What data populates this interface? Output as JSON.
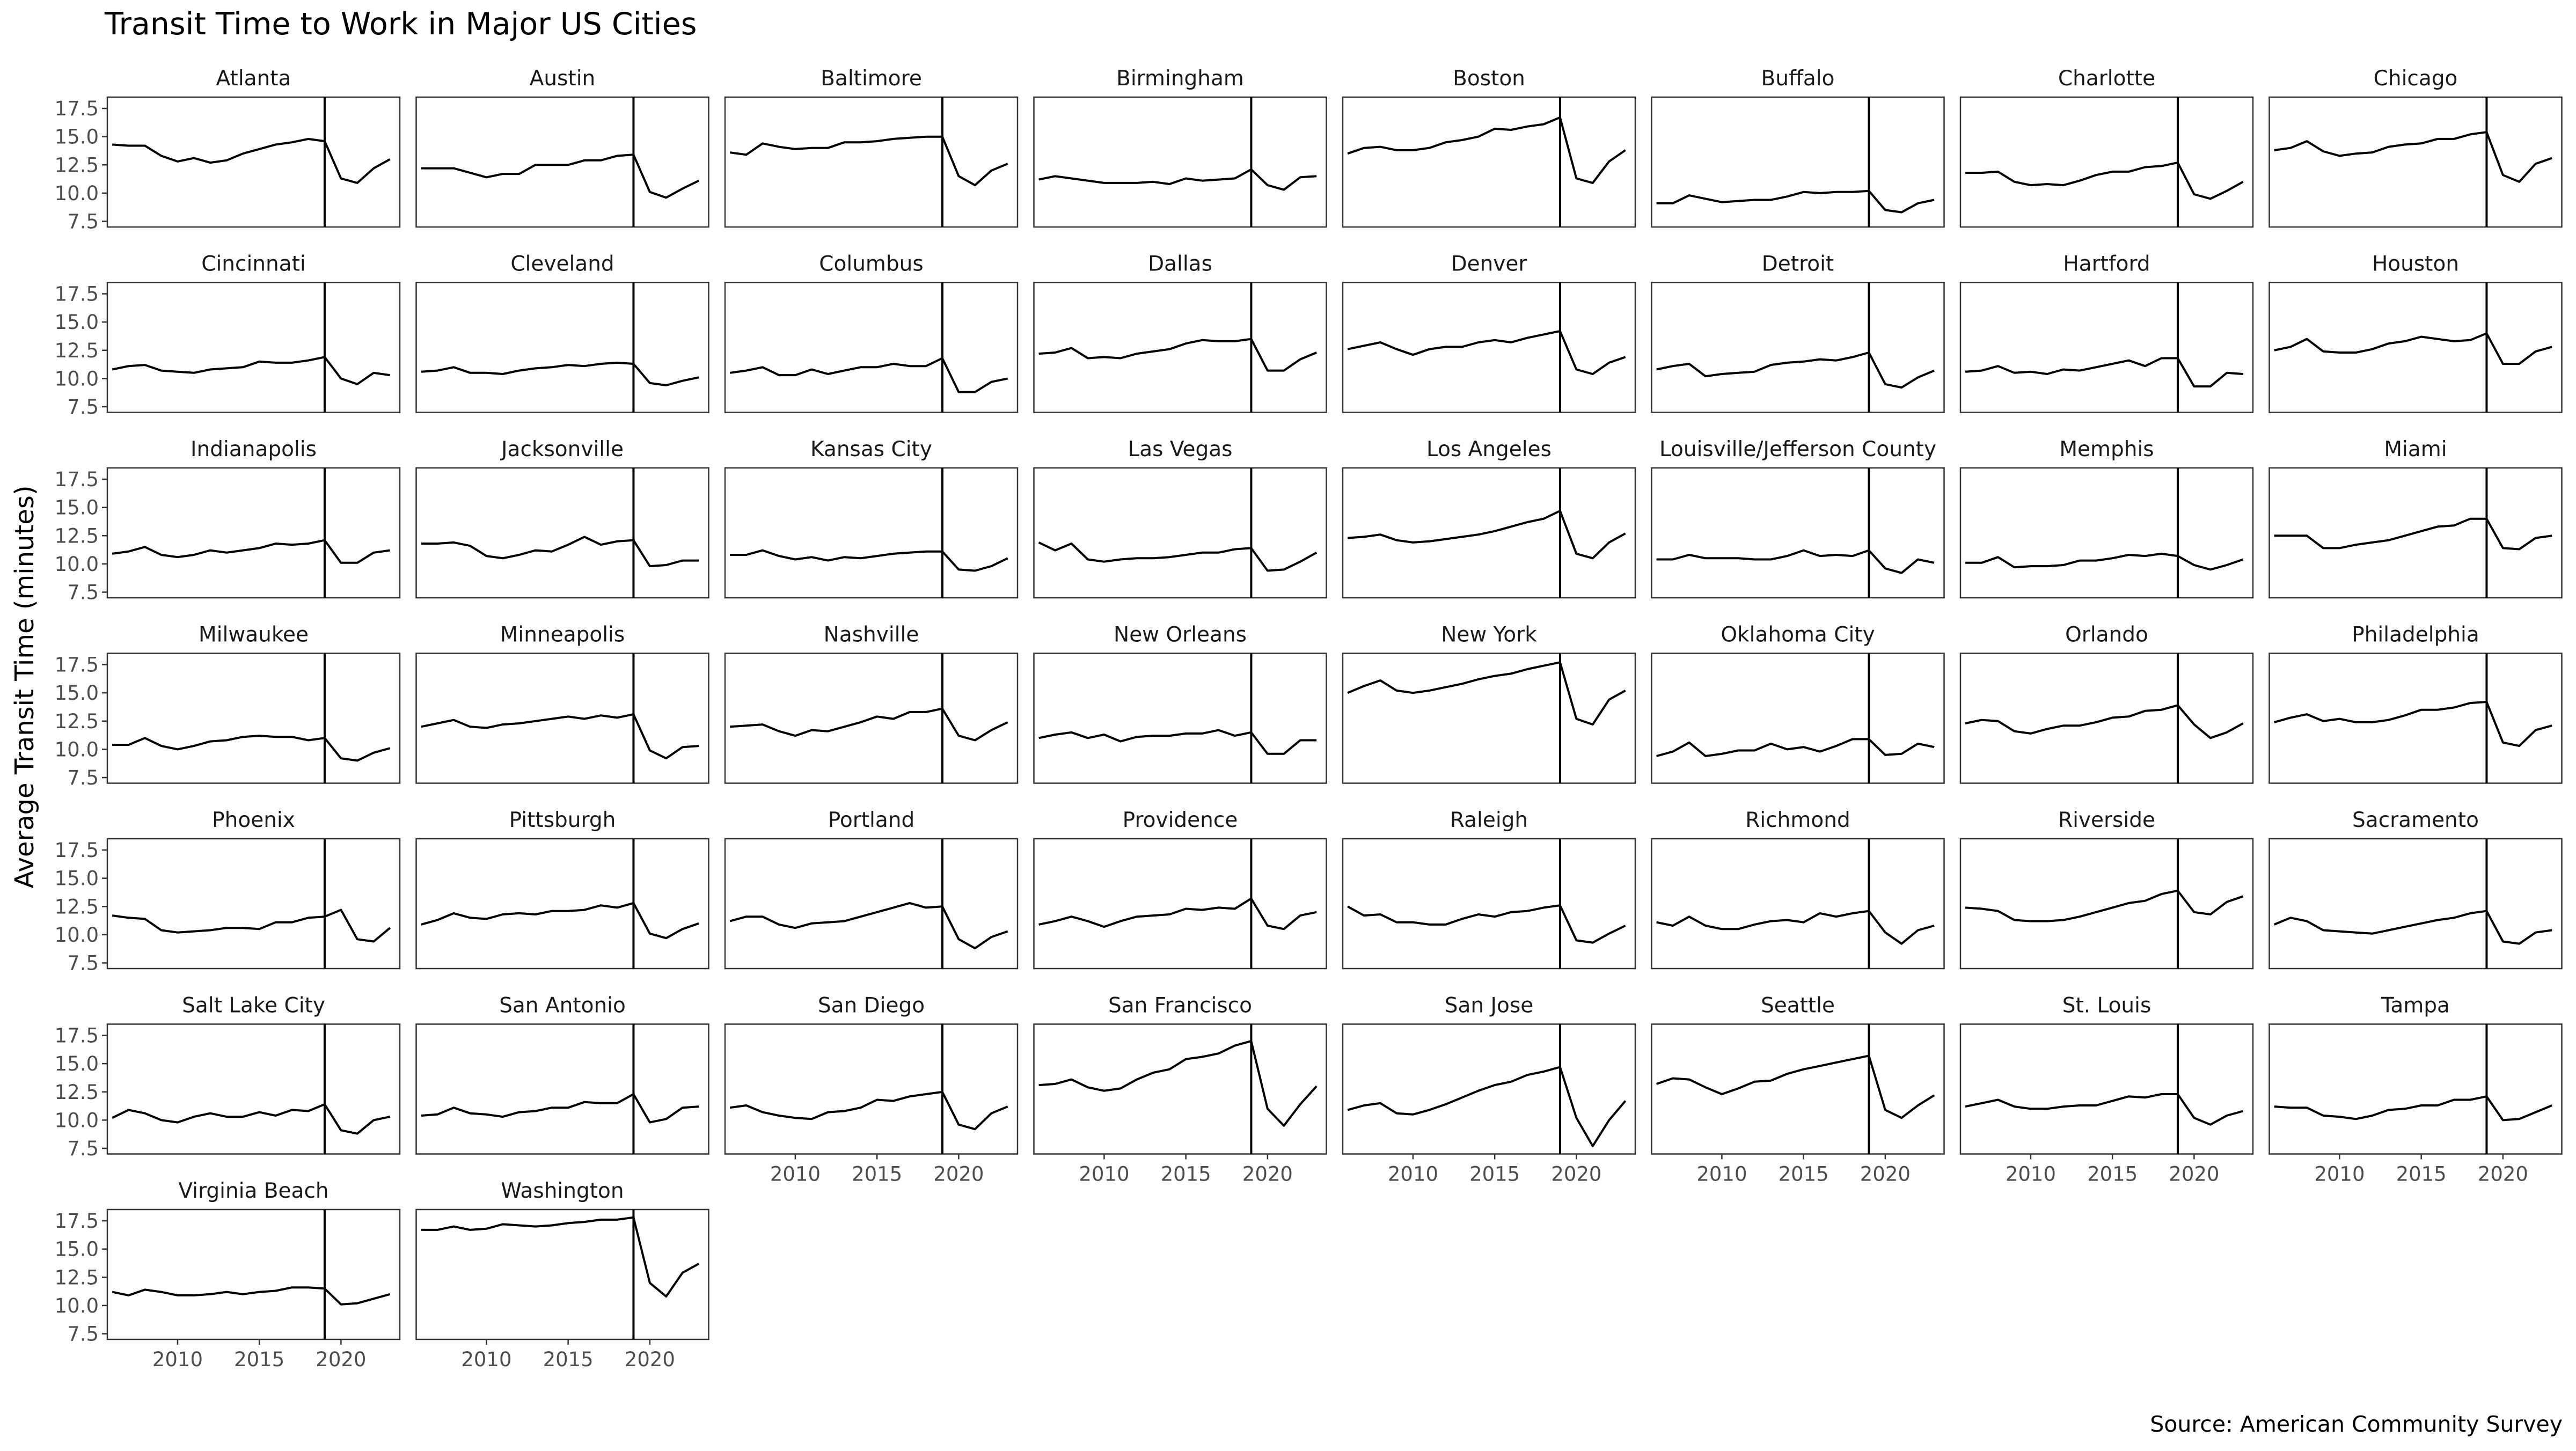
{
  "page": {
    "title": "Transit Time to Work in Major US Cities",
    "caption": "Source: American Community Survey"
  },
  "chart_data": {
    "type": "line",
    "title": "Transit Time to Work in Major US Cities",
    "xlabel": "",
    "ylabel": "Average Transit Time (minutes)",
    "caption": "Source: American Community Survey",
    "x": [
      2006,
      2007,
      2008,
      2009,
      2010,
      2011,
      2012,
      2013,
      2014,
      2015,
      2016,
      2017,
      2018,
      2019,
      2020,
      2021,
      2022,
      2023
    ],
    "xlim": [
      2005.7,
      2023.6
    ],
    "ylim": [
      7.0,
      18.5
    ],
    "x_ticks": [
      2010,
      2015,
      2020
    ],
    "x_tick_labels": [
      "2010",
      "2015",
      "2020"
    ],
    "y_ticks": [
      7.5,
      10.0,
      12.5,
      15.0,
      17.5
    ],
    "y_tick_labels": [
      "7.5",
      "10.0",
      "12.5",
      "15.0",
      "17.5"
    ],
    "reference_line_x": 2019,
    "grid": false,
    "legend": "none",
    "facet_columns": 8,
    "series": [
      {
        "name": "Atlanta",
        "values": [
          14.3,
          14.2,
          14.2,
          13.3,
          12.8,
          13.1,
          12.7,
          12.9,
          13.5,
          13.9,
          14.3,
          14.5,
          14.8,
          14.6,
          11.3,
          10.9,
          12.2,
          13.0
        ]
      },
      {
        "name": "Austin",
        "values": [
          12.2,
          12.2,
          12.2,
          11.8,
          11.4,
          11.7,
          11.7,
          12.5,
          12.5,
          12.5,
          12.9,
          12.9,
          13.3,
          13.4,
          10.1,
          9.6,
          10.4,
          11.1
        ]
      },
      {
        "name": "Baltimore",
        "values": [
          13.6,
          13.4,
          14.4,
          14.1,
          13.9,
          14.0,
          14.0,
          14.5,
          14.5,
          14.6,
          14.8,
          14.9,
          15.0,
          15.0,
          11.5,
          10.7,
          12.0,
          12.6
        ]
      },
      {
        "name": "Birmingham",
        "values": [
          11.2,
          11.5,
          11.3,
          11.1,
          10.9,
          10.9,
          10.9,
          11.0,
          10.8,
          11.3,
          11.1,
          11.2,
          11.3,
          12.1,
          10.7,
          10.3,
          11.4,
          11.5
        ]
      },
      {
        "name": "Boston",
        "values": [
          13.5,
          14.0,
          14.1,
          13.8,
          13.8,
          14.0,
          14.5,
          14.7,
          15.0,
          15.7,
          15.6,
          15.9,
          16.1,
          16.7,
          11.3,
          10.9,
          12.8,
          13.8
        ]
      },
      {
        "name": "Buffalo",
        "values": [
          9.1,
          9.1,
          9.8,
          9.5,
          9.2,
          9.3,
          9.4,
          9.4,
          9.7,
          10.1,
          10.0,
          10.1,
          10.1,
          10.2,
          8.5,
          8.3,
          9.1,
          9.4
        ]
      },
      {
        "name": "Charlotte",
        "values": [
          11.8,
          11.8,
          11.9,
          11.0,
          10.7,
          10.8,
          10.7,
          11.1,
          11.6,
          11.9,
          11.9,
          12.3,
          12.4,
          12.7,
          9.9,
          9.5,
          10.2,
          11.0
        ]
      },
      {
        "name": "Chicago",
        "values": [
          13.8,
          14.0,
          14.6,
          13.7,
          13.3,
          13.5,
          13.6,
          14.1,
          14.3,
          14.4,
          14.8,
          14.8,
          15.2,
          15.4,
          11.6,
          11.0,
          12.6,
          13.1
        ]
      },
      {
        "name": "Cincinnati",
        "values": [
          10.8,
          11.1,
          11.2,
          10.7,
          10.6,
          10.5,
          10.8,
          10.9,
          11.0,
          11.5,
          11.4,
          11.4,
          11.6,
          11.9,
          10.0,
          9.5,
          10.5,
          10.3
        ]
      },
      {
        "name": "Cleveland",
        "values": [
          10.6,
          10.7,
          11.0,
          10.5,
          10.5,
          10.4,
          10.7,
          10.9,
          11.0,
          11.2,
          11.1,
          11.3,
          11.4,
          11.3,
          9.6,
          9.4,
          9.8,
          10.1
        ]
      },
      {
        "name": "Columbus",
        "values": [
          10.5,
          10.7,
          11.0,
          10.3,
          10.3,
          10.8,
          10.4,
          10.7,
          11.0,
          11.0,
          11.3,
          11.1,
          11.1,
          11.8,
          8.8,
          8.8,
          9.7,
          10.0
        ]
      },
      {
        "name": "Dallas",
        "values": [
          12.2,
          12.3,
          12.7,
          11.8,
          11.9,
          11.8,
          12.2,
          12.4,
          12.6,
          13.1,
          13.4,
          13.3,
          13.3,
          13.5,
          10.7,
          10.7,
          11.7,
          12.3
        ]
      },
      {
        "name": "Denver",
        "values": [
          12.6,
          12.9,
          13.2,
          12.6,
          12.1,
          12.6,
          12.8,
          12.8,
          13.2,
          13.4,
          13.2,
          13.6,
          13.9,
          14.2,
          10.8,
          10.4,
          11.4,
          11.9
        ]
      },
      {
        "name": "Detroit",
        "values": [
          10.8,
          11.1,
          11.3,
          10.2,
          10.4,
          10.5,
          10.6,
          11.2,
          11.4,
          11.5,
          11.7,
          11.6,
          11.9,
          12.3,
          9.5,
          9.2,
          10.1,
          10.7
        ]
      },
      {
        "name": "Hartford",
        "values": [
          10.6,
          10.7,
          11.1,
          10.5,
          10.6,
          10.4,
          10.8,
          10.7,
          11.0,
          11.3,
          11.6,
          11.1,
          11.8,
          11.8,
          9.3,
          9.3,
          10.5,
          10.4
        ]
      },
      {
        "name": "Houston",
        "values": [
          12.5,
          12.8,
          13.5,
          12.4,
          12.3,
          12.3,
          12.6,
          13.1,
          13.3,
          13.7,
          13.5,
          13.3,
          13.4,
          14.0,
          11.3,
          11.3,
          12.4,
          12.8
        ]
      },
      {
        "name": "Indianapolis",
        "values": [
          10.9,
          11.1,
          11.5,
          10.8,
          10.6,
          10.8,
          11.2,
          11.0,
          11.2,
          11.4,
          11.8,
          11.7,
          11.8,
          12.1,
          10.1,
          10.1,
          11.0,
          11.2
        ]
      },
      {
        "name": "Jacksonville",
        "values": [
          11.8,
          11.8,
          11.9,
          11.6,
          10.7,
          10.5,
          10.8,
          11.2,
          11.1,
          11.7,
          12.4,
          11.7,
          12.0,
          12.1,
          9.8,
          9.9,
          10.3,
          10.3
        ]
      },
      {
        "name": "Kansas City",
        "values": [
          10.8,
          10.8,
          11.2,
          10.7,
          10.4,
          10.6,
          10.3,
          10.6,
          10.5,
          10.7,
          10.9,
          11.0,
          11.1,
          11.1,
          9.5,
          9.4,
          9.8,
          10.5
        ]
      },
      {
        "name": "Las Vegas",
        "values": [
          11.9,
          11.2,
          11.8,
          10.4,
          10.2,
          10.4,
          10.5,
          10.5,
          10.6,
          10.8,
          11.0,
          11.0,
          11.3,
          11.4,
          9.4,
          9.5,
          10.2,
          11.0
        ]
      },
      {
        "name": "Los Angeles",
        "values": [
          12.3,
          12.4,
          12.6,
          12.1,
          11.9,
          12.0,
          12.2,
          12.4,
          12.6,
          12.9,
          13.3,
          13.7,
          14.0,
          14.7,
          10.9,
          10.5,
          11.9,
          12.7
        ]
      },
      {
        "name": "Louisville/Jefferson County",
        "values": [
          10.4,
          10.4,
          10.8,
          10.5,
          10.5,
          10.5,
          10.4,
          10.4,
          10.7,
          11.2,
          10.7,
          10.8,
          10.7,
          11.2,
          9.6,
          9.2,
          10.4,
          10.1
        ]
      },
      {
        "name": "Memphis",
        "values": [
          10.1,
          10.1,
          10.6,
          9.7,
          9.8,
          9.8,
          9.9,
          10.3,
          10.3,
          10.5,
          10.8,
          10.7,
          10.9,
          10.7,
          9.9,
          9.5,
          9.9,
          10.4
        ]
      },
      {
        "name": "Miami",
        "values": [
          12.5,
          12.5,
          12.5,
          11.4,
          11.4,
          11.7,
          11.9,
          12.1,
          12.5,
          12.9,
          13.3,
          13.4,
          14.0,
          14.0,
          11.4,
          11.3,
          12.3,
          12.5
        ]
      },
      {
        "name": "Milwaukee",
        "values": [
          10.4,
          10.4,
          11.0,
          10.3,
          10.0,
          10.3,
          10.7,
          10.8,
          11.1,
          11.2,
          11.1,
          11.1,
          10.8,
          11.0,
          9.2,
          9.0,
          9.7,
          10.1
        ]
      },
      {
        "name": "Minneapolis",
        "values": [
          12.0,
          12.3,
          12.6,
          12.0,
          11.9,
          12.2,
          12.3,
          12.5,
          12.7,
          12.9,
          12.7,
          13.0,
          12.8,
          13.1,
          9.9,
          9.2,
          10.2,
          10.3
        ]
      },
      {
        "name": "Nashville",
        "values": [
          12.0,
          12.1,
          12.2,
          11.6,
          11.2,
          11.7,
          11.6,
          12.0,
          12.4,
          12.9,
          12.7,
          13.3,
          13.3,
          13.6,
          11.2,
          10.8,
          11.7,
          12.4
        ]
      },
      {
        "name": "New Orleans",
        "values": [
          11.0,
          11.3,
          11.5,
          11.0,
          11.3,
          10.7,
          11.1,
          11.2,
          11.2,
          11.4,
          11.4,
          11.7,
          11.2,
          11.5,
          9.6,
          9.6,
          10.8,
          10.8
        ]
      },
      {
        "name": "New York",
        "values": [
          15.0,
          15.6,
          16.1,
          15.2,
          15.0,
          15.2,
          15.5,
          15.8,
          16.2,
          16.5,
          16.7,
          17.1,
          17.4,
          17.7,
          12.7,
          12.2,
          14.4,
          15.2
        ]
      },
      {
        "name": "Oklahoma City",
        "values": [
          9.4,
          9.8,
          10.6,
          9.4,
          9.6,
          9.9,
          9.9,
          10.5,
          10.0,
          10.2,
          9.8,
          10.3,
          10.9,
          10.9,
          9.5,
          9.6,
          10.5,
          10.2
        ]
      },
      {
        "name": "Orlando",
        "values": [
          12.3,
          12.6,
          12.5,
          11.6,
          11.4,
          11.8,
          12.1,
          12.1,
          12.4,
          12.8,
          12.9,
          13.4,
          13.5,
          13.9,
          12.2,
          11.0,
          11.5,
          12.3
        ]
      },
      {
        "name": "Philadelphia",
        "values": [
          12.4,
          12.8,
          13.1,
          12.5,
          12.7,
          12.4,
          12.4,
          12.6,
          13.0,
          13.5,
          13.5,
          13.7,
          14.1,
          14.2,
          10.6,
          10.3,
          11.7,
          12.1
        ]
      },
      {
        "name": "Phoenix",
        "values": [
          11.7,
          11.5,
          11.4,
          10.4,
          10.2,
          10.3,
          10.4,
          10.6,
          10.6,
          10.5,
          11.1,
          11.1,
          11.5,
          11.6,
          12.2,
          9.6,
          9.4,
          10.6
        ]
      },
      {
        "name": "Pittsburgh",
        "values": [
          10.9,
          11.3,
          11.9,
          11.5,
          11.4,
          11.8,
          11.9,
          11.8,
          12.1,
          12.1,
          12.2,
          12.6,
          12.4,
          12.8,
          10.1,
          9.7,
          10.5,
          11.0
        ]
      },
      {
        "name": "Portland",
        "values": [
          11.2,
          11.6,
          11.6,
          10.9,
          10.6,
          11.0,
          11.1,
          11.2,
          11.6,
          12.0,
          12.4,
          12.8,
          12.4,
          12.5,
          9.6,
          8.8,
          9.8,
          10.3
        ]
      },
      {
        "name": "Providence",
        "values": [
          10.9,
          11.2,
          11.6,
          11.2,
          10.7,
          11.2,
          11.6,
          11.7,
          11.8,
          12.3,
          12.2,
          12.4,
          12.3,
          13.2,
          10.8,
          10.5,
          11.7,
          12.0
        ]
      },
      {
        "name": "Raleigh",
        "values": [
          12.5,
          11.7,
          11.8,
          11.1,
          11.1,
          10.9,
          10.9,
          11.4,
          11.8,
          11.6,
          12.0,
          12.1,
          12.4,
          12.6,
          9.5,
          9.3,
          10.1,
          10.8
        ]
      },
      {
        "name": "Richmond",
        "values": [
          11.1,
          10.8,
          11.6,
          10.8,
          10.5,
          10.5,
          10.9,
          11.2,
          11.3,
          11.1,
          11.9,
          11.6,
          11.9,
          12.1,
          10.2,
          9.2,
          10.4,
          10.8
        ]
      },
      {
        "name": "Riverside",
        "values": [
          12.4,
          12.3,
          12.1,
          11.3,
          11.2,
          11.2,
          11.3,
          11.6,
          12.0,
          12.4,
          12.8,
          13.0,
          13.6,
          13.9,
          12.0,
          11.8,
          12.9,
          13.4
        ]
      },
      {
        "name": "Sacramento",
        "values": [
          10.9,
          11.5,
          11.2,
          10.4,
          10.3,
          10.2,
          10.1,
          10.4,
          10.7,
          11.0,
          11.3,
          11.5,
          11.9,
          12.1,
          9.4,
          9.2,
          10.2,
          10.4
        ]
      },
      {
        "name": "Salt Lake City",
        "values": [
          10.2,
          10.9,
          10.6,
          10.0,
          9.8,
          10.3,
          10.6,
          10.3,
          10.3,
          10.7,
          10.4,
          10.9,
          10.8,
          11.4,
          9.1,
          8.8,
          10.0,
          10.3
        ]
      },
      {
        "name": "San Antonio",
        "values": [
          10.4,
          10.5,
          11.1,
          10.6,
          10.5,
          10.3,
          10.7,
          10.8,
          11.1,
          11.1,
          11.6,
          11.5,
          11.5,
          12.3,
          9.8,
          10.1,
          11.1,
          11.2
        ]
      },
      {
        "name": "San Diego",
        "values": [
          11.1,
          11.3,
          10.7,
          10.4,
          10.2,
          10.1,
          10.7,
          10.8,
          11.1,
          11.8,
          11.7,
          12.1,
          12.3,
          12.5,
          9.6,
          9.2,
          10.6,
          11.2
        ]
      },
      {
        "name": "San Francisco",
        "values": [
          13.1,
          13.2,
          13.6,
          12.9,
          12.6,
          12.8,
          13.6,
          14.2,
          14.5,
          15.4,
          15.6,
          15.9,
          16.6,
          17.0,
          11.0,
          9.5,
          11.4,
          13.0
        ]
      },
      {
        "name": "San Jose",
        "values": [
          10.9,
          11.3,
          11.5,
          10.6,
          10.5,
          10.9,
          11.4,
          12.0,
          12.6,
          13.1,
          13.4,
          14.0,
          14.3,
          14.7,
          10.2,
          7.7,
          10.0,
          11.7
        ]
      },
      {
        "name": "Seattle",
        "values": [
          13.2,
          13.7,
          13.6,
          12.9,
          12.3,
          12.8,
          13.4,
          13.5,
          14.1,
          14.5,
          14.8,
          15.1,
          15.4,
          15.7,
          10.9,
          10.2,
          11.3,
          12.2
        ]
      },
      {
        "name": "St. Louis",
        "values": [
          11.2,
          11.5,
          11.8,
          11.2,
          11.0,
          11.0,
          11.2,
          11.3,
          11.3,
          11.7,
          12.1,
          12.0,
          12.3,
          12.3,
          10.2,
          9.6,
          10.4,
          10.8
        ]
      },
      {
        "name": "Tampa",
        "values": [
          11.2,
          11.1,
          11.1,
          10.4,
          10.3,
          10.1,
          10.4,
          10.9,
          11.0,
          11.3,
          11.3,
          11.8,
          11.8,
          12.1,
          10.0,
          10.1,
          10.7,
          11.3
        ]
      },
      {
        "name": "Virginia Beach",
        "values": [
          11.2,
          10.9,
          11.4,
          11.2,
          10.9,
          10.9,
          11.0,
          11.2,
          11.0,
          11.2,
          11.3,
          11.6,
          11.6,
          11.5,
          10.1,
          10.2,
          10.6,
          11.0
        ]
      },
      {
        "name": "Washington",
        "values": [
          16.7,
          16.7,
          17.0,
          16.7,
          16.8,
          17.2,
          17.1,
          17.0,
          17.1,
          17.3,
          17.4,
          17.6,
          17.6,
          17.8,
          12.0,
          10.8,
          12.9,
          13.7
        ]
      }
    ]
  }
}
